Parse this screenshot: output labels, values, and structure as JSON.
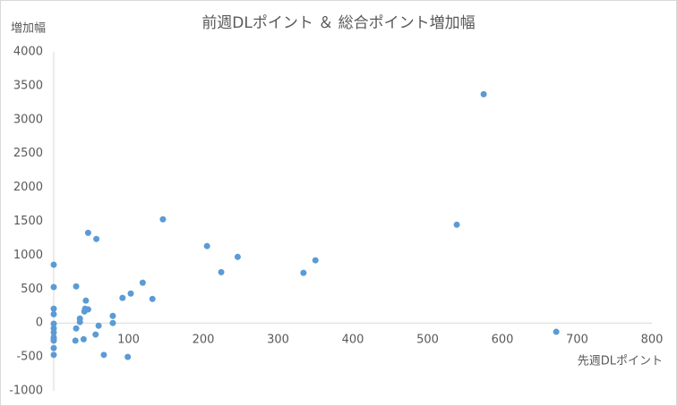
{
  "chart_data": {
    "type": "scatter",
    "title": "前週DLポイント ＆ 総合ポイント増加幅",
    "xlabel": "先週DLポイント",
    "ylabel": "増加幅",
    "color": "#5b9bd5",
    "x": [
      0,
      0,
      0,
      0,
      0,
      0,
      0,
      0,
      0,
      0,
      0,
      30,
      30,
      29,
      35,
      35,
      40,
      41,
      42,
      43,
      46,
      46,
      56,
      57,
      60,
      67,
      79,
      79,
      92,
      99,
      103,
      119,
      132,
      146,
      205,
      224,
      246,
      334,
      350,
      539,
      575,
      672
    ],
    "values": [
      860,
      530,
      210,
      130,
      -10,
      -80,
      -140,
      -220,
      -260,
      -370,
      -470,
      540,
      -80,
      -260,
      65,
      15,
      -240,
      170,
      210,
      330,
      200,
      1330,
      -170,
      1240,
      -40,
      -470,
      105,
      0,
      370,
      -500,
      435,
      595,
      355,
      1530,
      1135,
      750,
      975,
      740,
      925,
      1450,
      3375,
      -130
    ],
    "xlim": [
      0,
      800
    ],
    "xticks": [
      0,
      100,
      200,
      300,
      400,
      500,
      600,
      700,
      800
    ],
    "ylim": [
      -1000,
      4000
    ],
    "yticks": [
      -1000,
      -500,
      0,
      500,
      1000,
      1500,
      2000,
      2500,
      3000,
      3500,
      4000
    ],
    "grid": false
  }
}
